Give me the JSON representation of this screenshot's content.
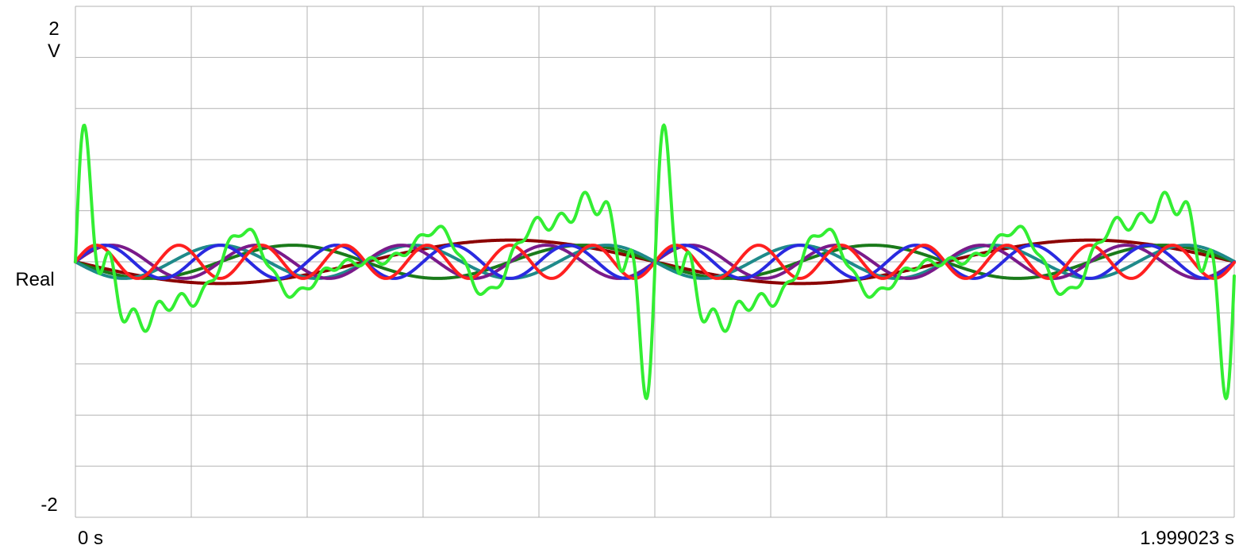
{
  "chart_data": {
    "type": "line",
    "x_unit": "s",
    "y_unit": "V",
    "ylabel": "Real",
    "xlim": [
      0,
      1.999023
    ],
    "ylim": [
      -2,
      2
    ],
    "ytick_labels": {
      "max": "2",
      "unit": "V",
      "min": "-2"
    },
    "xtick_labels": {
      "start": "0 s",
      "end": "1.999023 s"
    },
    "grid": true,
    "period_s": 1.0,
    "series": [
      {
        "color": "#8b0000",
        "kind": "sine",
        "harmonic": 1,
        "amplitude": 0.17,
        "sign": -1
      },
      {
        "color": "#1a7a1a",
        "kind": "sine",
        "harmonic": 2,
        "amplitude": 0.13,
        "sign": -1
      },
      {
        "color": "#1f8a8a",
        "kind": "sine",
        "harmonic": 3,
        "amplitude": 0.13,
        "sign": -1
      },
      {
        "color": "#7a1a8a",
        "kind": "sine",
        "harmonic": 4,
        "amplitude": 0.13,
        "sign": 1
      },
      {
        "color": "#2a2ae0",
        "kind": "sine",
        "harmonic": 5,
        "amplitude": 0.13,
        "sign": 1
      },
      {
        "color": "#ff2020",
        "kind": "sine",
        "harmonic": 7,
        "amplitude": 0.13,
        "sign": 1
      },
      {
        "color": "#33ee33",
        "kind": "sum",
        "harmonic": 8,
        "amplitude": 0.13,
        "sign": 1
      }
    ]
  }
}
